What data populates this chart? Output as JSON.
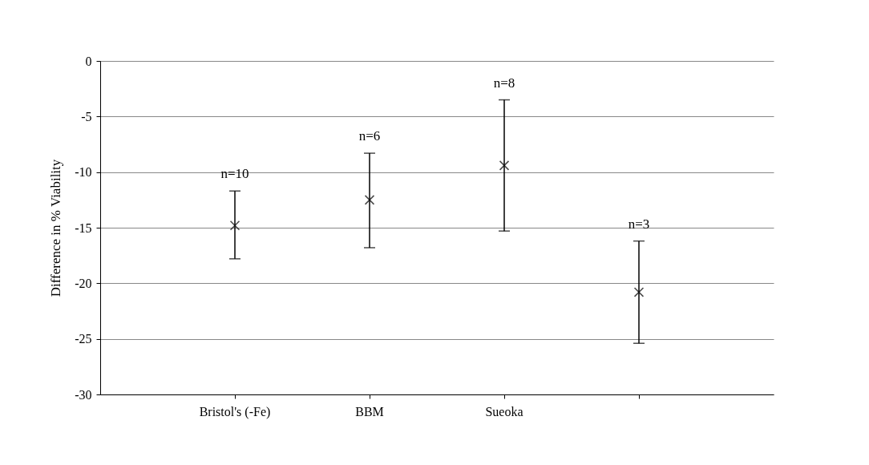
{
  "chart_data": {
    "type": "scatter",
    "ylabel": "Difference in % Viability",
    "categories": [
      "Bristol's (-Fe)",
      "BBM",
      "Sueoka",
      null
    ],
    "values": [
      -14.8,
      -12.5,
      -9.4,
      -20.8
    ],
    "errors": [
      [
        -17.8,
        -11.7
      ],
      [
        -16.8,
        -8.3
      ],
      [
        -15.3,
        -3.5
      ],
      [
        -25.4,
        -16.2
      ]
    ],
    "color": "#000000",
    "marker": "cross",
    "ylim": [
      -30,
      0
    ],
    "yticks": [
      -30,
      -25,
      -20,
      -15,
      -10,
      -5,
      0
    ],
    "grid": "y",
    "annotations": [
      {
        "text": "n=10",
        "x": "Bristol's (-Fe)",
        "y": -11.7
      },
      {
        "text": "n=6",
        "x": "BBM",
        "y": -8.3
      },
      {
        "text": "n=8",
        "x": "Sueoka",
        "y": -3.5
      },
      {
        "text": "n=3",
        "y": -16.2
      }
    ]
  }
}
